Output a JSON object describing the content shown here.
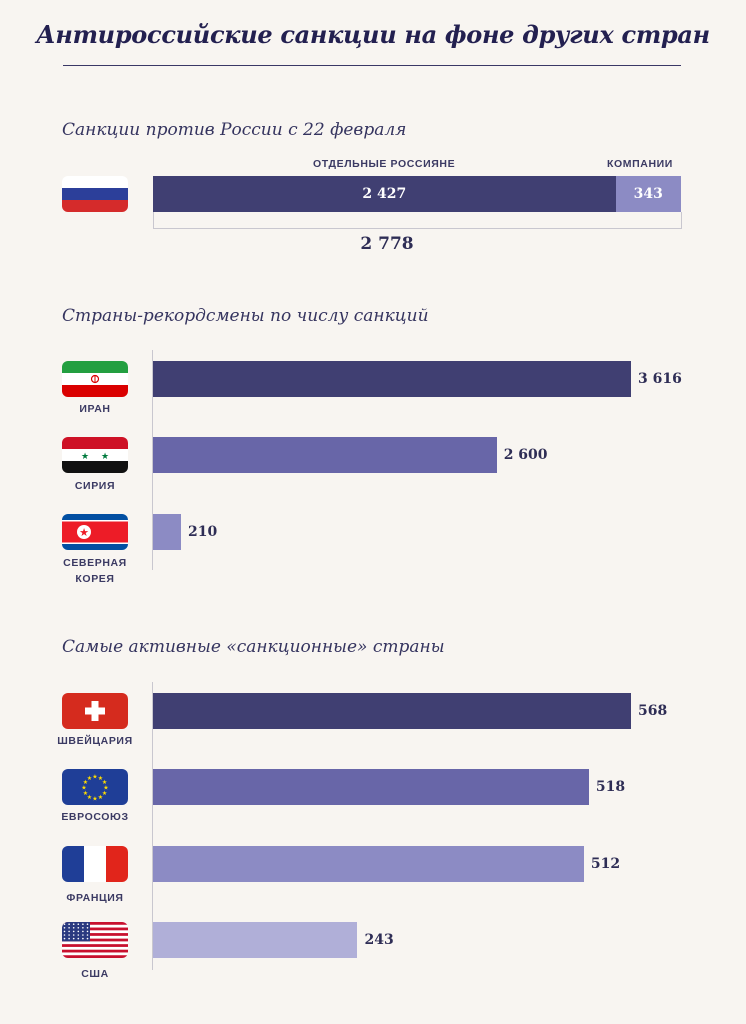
{
  "title": "Антироссийские санкции на фоне других стран",
  "colors": {
    "dark": "#403f72",
    "mid": "#6866a8",
    "light": "#8c8bc4",
    "lighter": "#b0afd8"
  },
  "section1": {
    "title": "Санкции против России с 22 февраля",
    "flag_icon": "russia-flag-icon",
    "label_individuals": "ОТДЕЛЬНЫЕ РОССИЯНЕ",
    "label_companies": "КОМПАНИИ",
    "individuals_value": "2 427",
    "companies_value": "343",
    "total": "2 778"
  },
  "section2": {
    "title": "Страны-рекордсмены по числу санкций",
    "countries": [
      {
        "name": "ИРАН",
        "value_label": "3 616",
        "flag_icon": "iran-flag-icon"
      },
      {
        "name": "СИРИЯ",
        "value_label": "2 600",
        "flag_icon": "syria-flag-icon"
      },
      {
        "name_line1": "СЕВЕРНАЯ",
        "name_line2": "КОРЕЯ",
        "value_label": "210",
        "flag_icon": "north-korea-flag-icon"
      }
    ]
  },
  "section3": {
    "title": "Самые активные «санкционные» страны",
    "countries": [
      {
        "name": "ШВЕЙЦАРИЯ",
        "value_label": "568",
        "flag_icon": "switzerland-flag-icon"
      },
      {
        "name": "ЕВРОСОЮЗ",
        "value_label": "518",
        "flag_icon": "eu-flag-icon"
      },
      {
        "name": "ФРАНЦИЯ",
        "value_label": "512",
        "flag_icon": "france-flag-icon"
      },
      {
        "name": "США",
        "value_label": "243",
        "flag_icon": "usa-flag-icon"
      }
    ]
  },
  "chart_data": [
    {
      "type": "bar",
      "title": "Санкции против России с 22 февраля",
      "categories": [
        "Россия"
      ],
      "series": [
        {
          "name": "ОТДЕЛЬНЫЕ РОССИЯНЕ",
          "values": [
            2427
          ]
        },
        {
          "name": "КОМПАНИИ",
          "values": [
            343
          ]
        }
      ],
      "total": 2778,
      "stacked": true,
      "orientation": "horizontal"
    },
    {
      "type": "bar",
      "title": "Страны-рекордсмены по числу санкций",
      "categories": [
        "ИРАН",
        "СИРИЯ",
        "СЕВЕРНАЯ КОРЕЯ"
      ],
      "values": [
        3616,
        2600,
        210
      ],
      "orientation": "horizontal"
    },
    {
      "type": "bar",
      "title": "Самые активные «санкционные» страны",
      "categories": [
        "ШВЕЙЦАРИЯ",
        "ЕВРОСОЮЗ",
        "ФРАНЦИЯ",
        "США"
      ],
      "values": [
        568,
        518,
        512,
        243
      ],
      "orientation": "horizontal"
    }
  ]
}
